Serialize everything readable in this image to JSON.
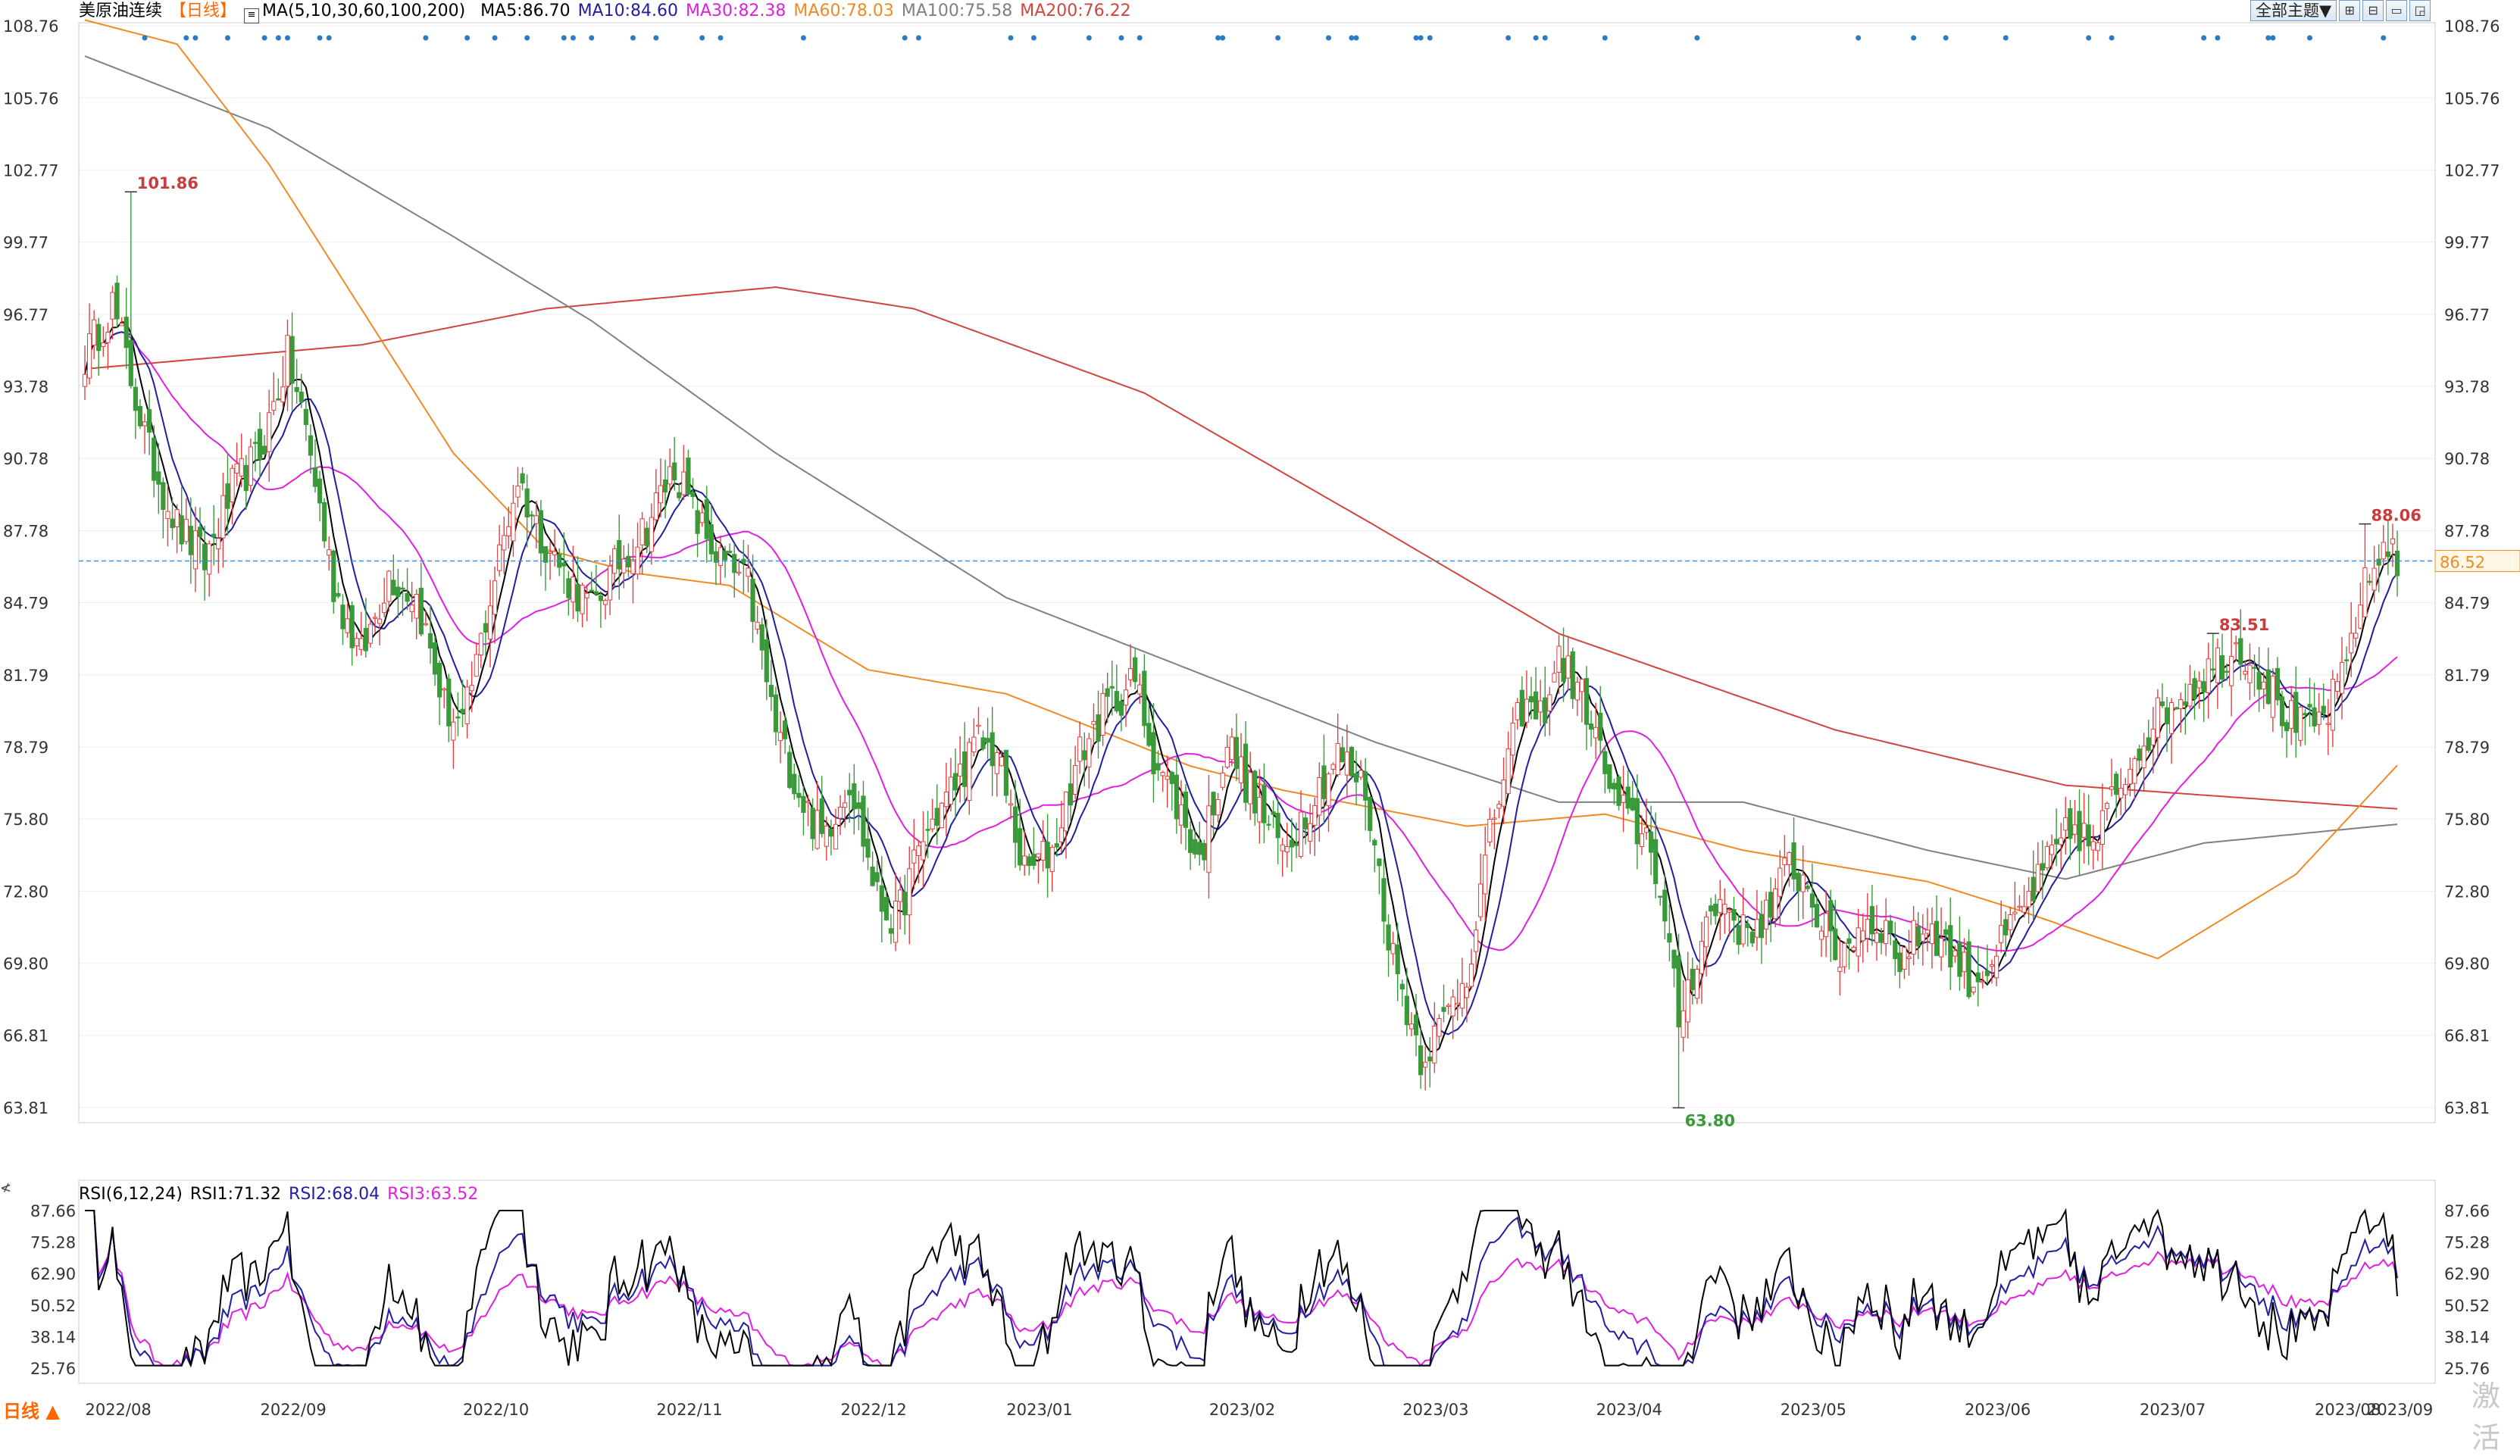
{
  "legend": {
    "title": "美原油连续",
    "period": "【日线】",
    "ma_params": "MA(5,10,30,60,100,200)",
    "items": [
      {
        "label": "MA5:86.70",
        "color": "#000000"
      },
      {
        "label": "MA10:84.60",
        "color": "#1f1fa0"
      },
      {
        "label": "MA30:82.38",
        "color": "#e020e0"
      },
      {
        "label": "MA60:78.03",
        "color": "#f08a24"
      },
      {
        "label": "MA100:75.58",
        "color": "#808080"
      },
      {
        "label": "MA200:76.22",
        "color": "#d0463f"
      }
    ]
  },
  "rsi_legend": {
    "params": "RSI(6,12,24)",
    "items": [
      {
        "label": "RSI1:71.32",
        "color": "#000000"
      },
      {
        "label": "RSI2:68.04",
        "color": "#1f1fa0"
      },
      {
        "label": "RSI3:63.52",
        "color": "#e020e0"
      }
    ]
  },
  "toolbar": {
    "theme_button": "全部主题▼"
  },
  "period_button": "日线 ▲",
  "watermark": "激活",
  "side_char": "≮",
  "chart_data": {
    "type": "candlestick",
    "price_axis": {
      "ticks": [
        "108.76",
        "105.76",
        "102.77",
        "99.77",
        "96.77",
        "93.78",
        "90.78",
        "87.78",
        "84.79",
        "81.79",
        "78.79",
        "75.80",
        "72.80",
        "69.80",
        "66.81",
        "63.81"
      ],
      "min": 63.81,
      "max": 108.76
    },
    "rsi_axis": {
      "ticks": [
        "87.66",
        "75.28",
        "62.90",
        "50.52",
        "38.14",
        "25.76"
      ],
      "min": 25.76,
      "max": 87.66
    },
    "x_labels": [
      "2022/08",
      "2022/09",
      "2022/10",
      "2022/11",
      "2022/12",
      "2023/01",
      "2023/02",
      "2023/03",
      "2023/04",
      "2023/05",
      "2023/06",
      "2023/07",
      "2023/08",
      "2023/09"
    ],
    "current_price": "86.52",
    "annotations": [
      {
        "text": "101.86",
        "value": 101.86,
        "type": "high"
      },
      {
        "text": "83.51",
        "value": 83.51,
        "type": "high"
      },
      {
        "text": "88.06",
        "value": 88.06,
        "type": "high"
      },
      {
        "text": "63.80",
        "value": 63.8,
        "type": "low"
      }
    ],
    "close_anchors": [
      [
        0,
        95
      ],
      [
        6,
        97.2
      ],
      [
        14,
        91
      ],
      [
        20,
        88
      ],
      [
        26,
        86.5
      ],
      [
        32,
        89.5
      ],
      [
        38,
        91
      ],
      [
        44,
        95
      ],
      [
        48,
        92
      ],
      [
        54,
        85.5
      ],
      [
        60,
        82.5
      ],
      [
        66,
        86
      ],
      [
        72,
        85
      ],
      [
        78,
        80.5
      ],
      [
        82,
        79.5
      ],
      [
        88,
        85
      ],
      [
        94,
        90
      ],
      [
        98,
        88
      ],
      [
        104,
        86
      ],
      [
        110,
        84.5
      ],
      [
        116,
        86.5
      ],
      [
        122,
        88
      ],
      [
        128,
        90.5
      ],
      [
        132,
        88.5
      ],
      [
        138,
        86.5
      ],
      [
        144,
        85.5
      ],
      [
        150,
        79.5
      ],
      [
        156,
        76.5
      ],
      [
        160,
        75
      ],
      [
        166,
        77.5
      ],
      [
        172,
        72.5
      ],
      [
        176,
        71.5
      ],
      [
        182,
        75
      ],
      [
        188,
        77
      ],
      [
        194,
        79
      ],
      [
        198,
        78.5
      ],
      [
        204,
        73.5
      ],
      [
        210,
        74.5
      ],
      [
        216,
        78.5
      ],
      [
        222,
        80.5
      ],
      [
        228,
        81.5
      ],
      [
        232,
        78.5
      ],
      [
        238,
        76
      ],
      [
        242,
        74
      ],
      [
        248,
        79
      ],
      [
        254,
        76.5
      ],
      [
        260,
        74.5
      ],
      [
        266,
        76.5
      ],
      [
        272,
        78.5
      ],
      [
        278,
        77
      ],
      [
        284,
        70
      ],
      [
        290,
        66
      ],
      [
        294,
        67
      ],
      [
        300,
        69.5
      ],
      [
        306,
        76
      ],
      [
        312,
        80.5
      ],
      [
        316,
        80
      ],
      [
        320,
        82.5
      ],
      [
        326,
        80.5
      ],
      [
        332,
        76.5
      ],
      [
        336,
        75.5
      ],
      [
        340,
        75
      ],
      [
        346,
        67.5
      ],
      [
        352,
        71.5
      ],
      [
        356,
        72.5
      ],
      [
        360,
        71
      ],
      [
        366,
        72
      ],
      [
        370,
        74
      ],
      [
        374,
        73
      ],
      [
        380,
        70
      ],
      [
        386,
        71.5
      ],
      [
        390,
        71.5
      ],
      [
        394,
        70
      ],
      [
        400,
        71.5
      ],
      [
        406,
        70
      ],
      [
        410,
        69
      ],
      [
        416,
        70.5
      ],
      [
        422,
        72.5
      ],
      [
        428,
        74.5
      ],
      [
        432,
        75.5
      ],
      [
        436,
        74.5
      ],
      [
        440,
        76.5
      ],
      [
        446,
        79
      ],
      [
        452,
        80.5
      ],
      [
        458,
        81.5
      ],
      [
        464,
        82.5
      ],
      [
        468,
        83
      ],
      [
        472,
        82
      ],
      [
        478,
        80
      ],
      [
        482,
        79.5
      ],
      [
        486,
        80
      ],
      [
        490,
        81.5
      ],
      [
        494,
        85
      ],
      [
        500,
        87.5
      ],
      [
        502,
        86.5
      ]
    ],
    "ma200_anchors": [
      [
        0,
        94.5
      ],
      [
        60,
        95.5
      ],
      [
        100,
        97
      ],
      [
        150,
        97.9
      ],
      [
        180,
        97
      ],
      [
        230,
        93.5
      ],
      [
        280,
        88
      ],
      [
        320,
        83.5
      ],
      [
        380,
        79.5
      ],
      [
        430,
        77.2
      ],
      [
        502,
        76.22
      ]
    ],
    "ma100_anchors": [
      [
        0,
        107.5
      ],
      [
        40,
        104.5
      ],
      [
        80,
        100
      ],
      [
        110,
        96.5
      ],
      [
        150,
        91
      ],
      [
        200,
        85
      ],
      [
        240,
        82
      ],
      [
        280,
        79
      ],
      [
        320,
        76.5
      ],
      [
        360,
        76.5
      ],
      [
        400,
        74.5
      ],
      [
        430,
        73.3
      ],
      [
        460,
        74.8
      ],
      [
        502,
        75.58
      ]
    ],
    "ma60_anchors": [
      [
        0,
        109
      ],
      [
        20,
        108
      ],
      [
        40,
        103
      ],
      [
        60,
        97
      ],
      [
        80,
        91
      ],
      [
        100,
        87
      ],
      [
        120,
        86
      ],
      [
        140,
        85.5
      ],
      [
        170,
        82
      ],
      [
        200,
        81
      ],
      [
        240,
        78
      ],
      [
        260,
        77
      ],
      [
        300,
        75.5
      ],
      [
        330,
        76
      ],
      [
        360,
        74.5
      ],
      [
        400,
        73.2
      ],
      [
        420,
        72
      ],
      [
        450,
        70
      ],
      [
        480,
        73.5
      ],
      [
        502,
        78.03
      ]
    ]
  }
}
